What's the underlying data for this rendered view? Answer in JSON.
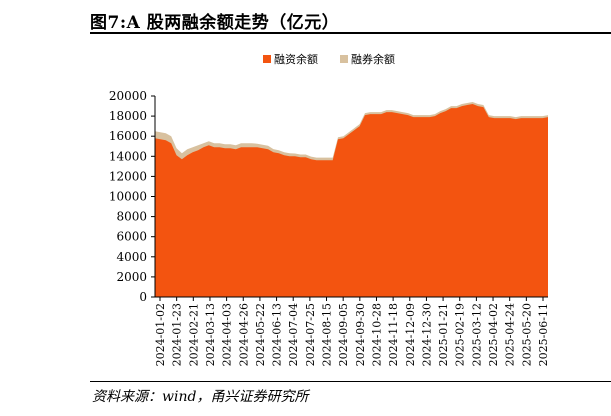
{
  "page": {
    "title": "图7:A 股两融余额走势（亿元）",
    "source": "资料来源：wind，甬兴证券研究所"
  },
  "chart_data": {
    "type": "area",
    "stacked": true,
    "title": "图7:A 股两融余额走势（亿元）",
    "xlabel": "",
    "ylabel": "",
    "ylim": [
      0,
      20000
    ],
    "yticks": [
      0,
      2000,
      4000,
      6000,
      8000,
      10000,
      12000,
      14000,
      16000,
      18000,
      20000
    ],
    "legend_position": "top-center",
    "grid": false,
    "x_ticklabels": [
      "2024-01-02",
      "2024-01-23",
      "2024-02-21",
      "2024-03-13",
      "2024-04-03",
      "2024-04-26",
      "2024-05-22",
      "2024-06-13",
      "2024-07-04",
      "2024-07-25",
      "2024-08-15",
      "2024-09-05",
      "2024-09-30",
      "2024-10-28",
      "2024-11-18",
      "2024-12-09",
      "2024-12-30",
      "2025-01-21",
      "2025-02-19",
      "2025-03-12",
      "2025-04-02",
      "2025-04-24",
      "2025-05-20",
      "2025-06-11"
    ],
    "series": [
      {
        "name": "融资余额",
        "color": "#F35410",
        "values": [
          15800,
          15700,
          15600,
          15300,
          14100,
          13700,
          14100,
          14400,
          14600,
          14900,
          15100,
          14900,
          14900,
          14800,
          14800,
          14700,
          14900,
          14900,
          14900,
          14900,
          14800,
          14700,
          14400,
          14300,
          14100,
          14000,
          14000,
          13900,
          13900,
          13700,
          13600,
          13600,
          13600,
          13600,
          15700,
          15800,
          16200,
          16600,
          17000,
          18100,
          18200,
          18200,
          18200,
          18400,
          18400,
          18300,
          18200,
          18100,
          17900,
          17900,
          17900,
          17900,
          18000,
          18300,
          18500,
          18800,
          18800,
          19000,
          19100,
          19200,
          19000,
          18900,
          17900,
          17800,
          17800,
          17800,
          17800,
          17700,
          17800,
          17800,
          17800,
          17800,
          17800,
          17900
        ]
      },
      {
        "name": "融券余额",
        "color": "#D8C19F",
        "values": [
          700,
          700,
          700,
          700,
          700,
          600,
          600,
          500,
          500,
          400,
          400,
          400,
          400,
          400,
          400,
          400,
          400,
          400,
          400,
          350,
          350,
          350,
          320,
          300,
          300,
          300,
          280,
          280,
          280,
          270,
          270,
          270,
          270,
          270,
          200,
          200,
          200,
          200,
          200,
          200,
          200,
          200,
          200,
          200,
          200,
          200,
          200,
          200,
          200,
          200,
          200,
          200,
          200,
          200,
          200,
          200,
          200,
          200,
          200,
          200,
          200,
          200,
          200,
          200,
          200,
          200,
          200,
          200,
          200,
          200,
          200,
          200,
          200,
          200
        ]
      }
    ]
  }
}
